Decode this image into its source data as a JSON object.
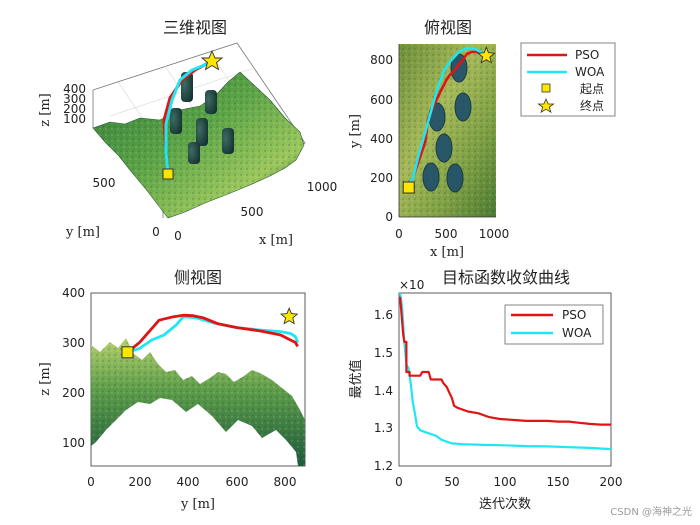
{
  "colors": {
    "pso": "#e01414",
    "woa": "#1ee6f2",
    "start_fill": "#ffe600",
    "goal_fill": "#ffe600",
    "terrain_dark": "#163f28",
    "terrain_mid": "#4a8f3c",
    "terrain_light": "#b8d46a"
  },
  "legend_top": {
    "pso": "PSO",
    "woa": "WOA",
    "start": "起点",
    "goal": "终点"
  },
  "watermark": "CSDN @海神之光",
  "chart_data": [
    {
      "type": "line",
      "title": "三维视图",
      "xlabel": "x [m]",
      "ylabel": "y [m]",
      "zlabel": "z [m]",
      "x_ticks": [
        "0",
        "500",
        "1000"
      ],
      "y_ticks": [
        "0",
        "500"
      ],
      "z_ticks": [
        "100",
        "200",
        "300",
        "400"
      ],
      "grid": true
    },
    {
      "type": "line",
      "title": "俯视图",
      "xlabel": "x [m]",
      "ylabel": "y [m]",
      "x_ticks": [
        "0",
        "500",
        "1000"
      ],
      "y_ticks": [
        "0",
        "200",
        "400",
        "600",
        "800"
      ],
      "xlim": [
        0,
        1000
      ],
      "ylim": [
        0,
        880
      ],
      "series": [
        {
          "name": "PSO",
          "x": [
            100,
            150,
            270,
            300,
            380,
            430,
            480,
            520,
            560,
            610,
            660,
            700,
            750,
            800,
            850,
            900
          ],
          "y": [
            150,
            210,
            380,
            500,
            590,
            640,
            690,
            720,
            740,
            770,
            800,
            830,
            840,
            840,
            830,
            820
          ]
        },
        {
          "name": "WOA",
          "x": [
            100,
            150,
            210,
            270,
            320,
            360,
            400,
            440,
            470,
            510,
            560,
            620,
            700,
            780,
            860,
            900
          ],
          "y": [
            150,
            210,
            330,
            430,
            520,
            590,
            660,
            710,
            750,
            780,
            810,
            840,
            860,
            855,
            835,
            820
          ]
        }
      ],
      "start": {
        "x": 100,
        "y": 150
      },
      "goal": {
        "x": 900,
        "y": 820
      },
      "legend": "outside-right"
    },
    {
      "type": "line",
      "title": "侧视图",
      "xlabel": "y [m]",
      "ylabel": "z [m]",
      "x_ticks": [
        "0",
        "200",
        "400",
        "600",
        "800"
      ],
      "y_ticks": [
        "100",
        "200",
        "300",
        "400"
      ],
      "xlim": [
        0,
        880
      ],
      "ylim": [
        50,
        400
      ],
      "series": [
        {
          "name": "PSO",
          "x": [
            150,
            200,
            280,
            340,
            380,
            420,
            460,
            520,
            600,
            700,
            780,
            820,
            840,
            850
          ],
          "y": [
            280,
            300,
            345,
            352,
            355,
            354,
            350,
            338,
            330,
            323,
            315,
            305,
            300,
            292
          ]
        },
        {
          "name": "WOA",
          "x": [
            150,
            200,
            250,
            300,
            350,
            380,
            430,
            500,
            600,
            700,
            780,
            820,
            840,
            850
          ],
          "y": [
            280,
            288,
            305,
            315,
            335,
            352,
            350,
            340,
            330,
            325,
            322,
            318,
            312,
            300
          ]
        }
      ],
      "start": {
        "x": 150,
        "y": 280
      },
      "goal": {
        "x": 815,
        "y": 352
      }
    },
    {
      "type": "line",
      "title": "目标函数收敛曲线",
      "xlabel": "迭代次数",
      "ylabel": "最优值",
      "exponent_label": "×10",
      "x_ticks": [
        "0",
        "50",
        "100",
        "150",
        "200"
      ],
      "y_ticks": [
        "1.2",
        "1.3",
        "1.4",
        "1.5",
        "1.6"
      ],
      "xlim": [
        0,
        200
      ],
      "ylim": [
        1.2,
        1.66
      ],
      "legend": "top-right",
      "series": [
        {
          "name": "PSO",
          "x": [
            1,
            4,
            5,
            7,
            7,
            10,
            10,
            20,
            22,
            28,
            30,
            40,
            42,
            45,
            50,
            52,
            55,
            60,
            65,
            75,
            85,
            95,
            110,
            120,
            140,
            150,
            160,
            170,
            180,
            190,
            200
          ],
          "y": [
            1.65,
            1.55,
            1.53,
            1.53,
            1.45,
            1.45,
            1.44,
            1.44,
            1.45,
            1.45,
            1.43,
            1.43,
            1.42,
            1.41,
            1.38,
            1.36,
            1.355,
            1.35,
            1.345,
            1.34,
            1.33,
            1.325,
            1.322,
            1.32,
            1.32,
            1.318,
            1.318,
            1.315,
            1.312,
            1.31,
            1.31
          ]
        },
        {
          "name": "WOA",
          "x": [
            1,
            3,
            5,
            7,
            9,
            11,
            13,
            15,
            17,
            20,
            25,
            30,
            35,
            40,
            45,
            50,
            60,
            80,
            100,
            120,
            140,
            160,
            180,
            200
          ],
          "y": [
            1.66,
            1.62,
            1.53,
            1.47,
            1.46,
            1.42,
            1.37,
            1.34,
            1.305,
            1.295,
            1.29,
            1.285,
            1.28,
            1.27,
            1.265,
            1.26,
            1.258,
            1.256,
            1.255,
            1.253,
            1.252,
            1.25,
            1.248,
            1.245
          ]
        }
      ]
    }
  ]
}
